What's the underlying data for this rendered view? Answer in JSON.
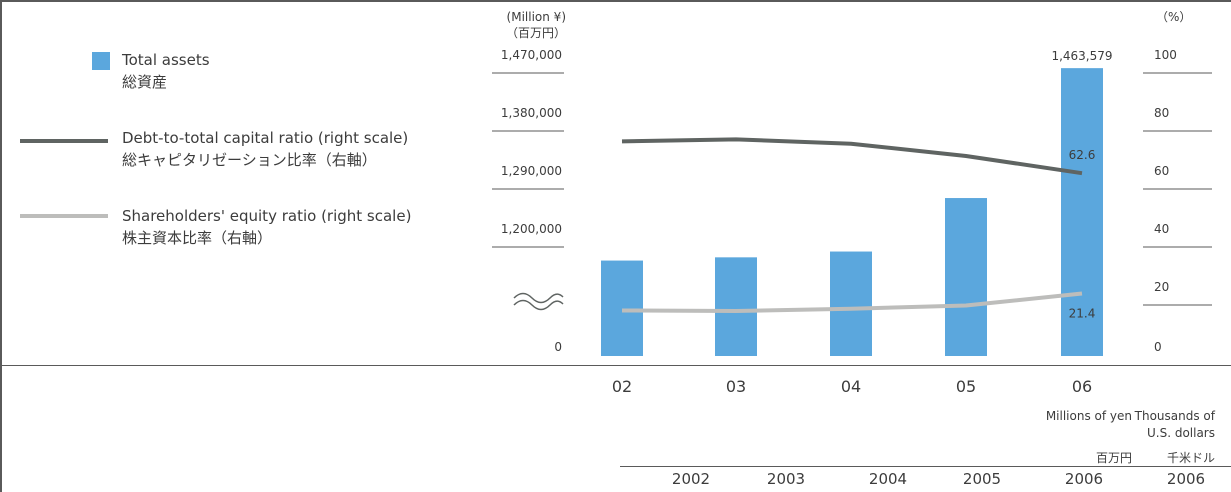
{
  "chart_data": {
    "type": "bar+line",
    "categories": [
      "02",
      "03",
      "04",
      "05",
      "06"
    ],
    "left_axis": {
      "unit_en": "(Million ¥)",
      "unit_ja": "（百万円）",
      "ticks": [
        {
          "label": "1,470,000",
          "value": 1470000
        },
        {
          "label": "1,380,000",
          "value": 1380000
        },
        {
          "label": "1,290,000",
          "value": 1290000
        },
        {
          "label": "1,200,000",
          "value": 1200000
        },
        {
          "label": "0",
          "value": 0
        }
      ],
      "broken": true
    },
    "right_axis": {
      "unit": "（%）",
      "ticks": [
        "100",
        "80",
        "60",
        "40",
        "20",
        "0"
      ],
      "ylim": [
        0,
        100
      ]
    },
    "series": [
      {
        "name_en": "Total assets",
        "name_ja": "総資産",
        "type": "bar",
        "axis": "left",
        "color": "#5ba7dd",
        "values": [
          1165000,
          1170000,
          1179000,
          1262000,
          1463579
        ],
        "data_labels": [
          null,
          null,
          null,
          null,
          "1,463,579"
        ]
      },
      {
        "name_en": "Debt-to-total capital ratio (right scale)",
        "name_ja": "総キャピタリゼーション比率（右軸）",
        "type": "line",
        "axis": "right",
        "color": "#5f6462",
        "values": [
          73.5,
          74.2,
          72.7,
          68.5,
          62.6
        ],
        "data_labels": [
          null,
          null,
          null,
          null,
          "62.6"
        ]
      },
      {
        "name_en": "Shareholders' equity ratio (right scale)",
        "name_ja": "株主資本比率（右軸）",
        "type": "line",
        "axis": "right",
        "color": "#bdbdbb",
        "values": [
          15.6,
          15.4,
          16.2,
          17.3,
          21.4
        ],
        "data_labels": [
          null,
          null,
          null,
          null,
          "21.4"
        ]
      }
    ]
  },
  "table_header": {
    "col1_unit_en": "Millions of yen",
    "col1_unit_ja": "百万円",
    "col2_unit_en_1": "Thousands of",
    "col2_unit_en_2": "U.S. dollars",
    "col2_unit_ja": "千米ドル",
    "years": [
      "2002",
      "2003",
      "2004",
      "2005",
      "2006",
      "2006"
    ]
  }
}
